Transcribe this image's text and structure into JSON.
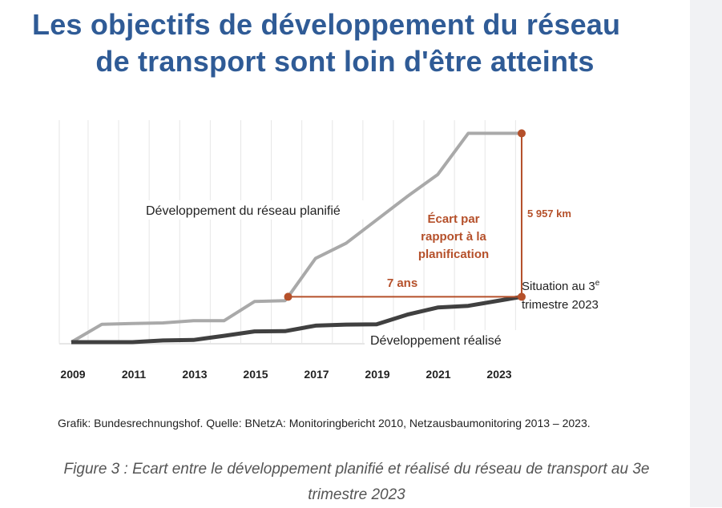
{
  "page": {
    "title_line1": "Les objectifs de développement du réseau",
    "title_line2": "de transport sont loin d'être atteints",
    "source": "Grafik: Bundesrechnungshof. Quelle: BNetzA: Monitoringbericht 2010, Netzausbaumonitoring 2013 – 2023.",
    "caption_line1": "Figure 3 : Ecart entre le développement planifié et réalisé du réseau de transport au 3e",
    "caption_line2": "trimestre 2023"
  },
  "colors": {
    "title": "#2f5b96",
    "planned": "#a9a9a9",
    "realized": "#404040",
    "annotation": "#b5502a",
    "grid": "#e6e6e6",
    "side_panel": "#f1f2f4"
  },
  "chart_data": {
    "type": "line",
    "title": "",
    "xlabel": "",
    "ylabel": "",
    "unit": "km",
    "xlim": [
      2009,
      2023.75
    ],
    "ylim": [
      0,
      7700
    ],
    "grid": "vertical",
    "x_ticks": [
      "2009",
      "2011",
      "2013",
      "2015",
      "2017",
      "2019",
      "2021",
      "2023"
    ],
    "series": [
      {
        "name": "Développement du réseau planifié",
        "x": [
          2009,
          2010,
          2011,
          2012,
          2013,
          2014,
          2015,
          2016,
          2016.1,
          2017,
          2018,
          2019,
          2020,
          2021,
          2022,
          2023,
          2023.75
        ],
        "values": [
          0,
          650,
          680,
          700,
          780,
          780,
          1480,
          1510,
          1650,
          3050,
          3600,
          4450,
          5300,
          6100,
          7600,
          7600,
          7600
        ]
      },
      {
        "name": "Développement réalisé",
        "x": [
          2009,
          2010,
          2011,
          2012,
          2013,
          2014,
          2015,
          2016,
          2017,
          2018,
          2019,
          2020,
          2021,
          2022,
          2023.75
        ],
        "values": [
          0,
          0,
          0,
          60,
          80,
          230,
          390,
          400,
          600,
          640,
          650,
          1000,
          1260,
          1320,
          1650
        ]
      }
    ],
    "annotations": {
      "gap_km_label": "5 957 km",
      "gap_text": "Écart par rapport à la planification",
      "gap_text_lines": [
        "Écart par",
        "rapport à la",
        "planification"
      ],
      "years_label": "7 ans",
      "situation_lines": [
        "Situation au 3",
        "e",
        "trimestre 2023"
      ],
      "planned_label": "Développement du réseau planifié",
      "realized_label": "Développement réalisé",
      "gap_points": [
        {
          "x": 2016.1,
          "y": 1650
        },
        {
          "x": 2023.75,
          "y": 1650
        },
        {
          "x": 2023.75,
          "y": 7600
        }
      ]
    }
  }
}
